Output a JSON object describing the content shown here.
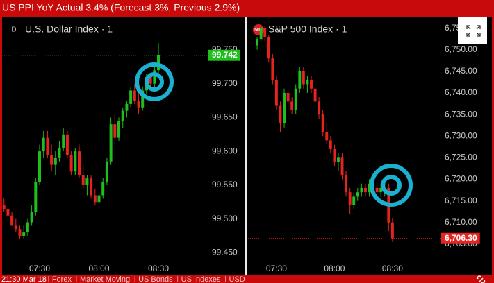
{
  "header": {
    "title": "US PPI YoY Actual 3.4% (Forecast 3%, Previous 2.9%)"
  },
  "footer": {
    "timestamp": "21:30 Mar 18",
    "tags": [
      "Forex",
      "Market Moving",
      "US Bonds",
      "US Indexes",
      "USD"
    ]
  },
  "chart_data": [
    {
      "type": "candlestick",
      "title": "U.S. Dollar Index · 1",
      "icon_label": "D",
      "up_color": "#1fbf1f",
      "down_color": "#e8231f",
      "x": [
        432,
        434,
        436,
        438,
        440,
        442,
        444,
        446,
        448,
        450,
        452,
        454,
        456,
        458,
        460,
        462,
        464,
        466,
        468,
        470,
        472,
        474,
        476,
        478,
        480,
        482,
        484,
        486,
        488,
        490,
        492,
        494,
        496,
        498,
        500,
        502,
        504,
        506,
        508,
        510
      ],
      "open": [
        99.52,
        99.515,
        99.505,
        99.49,
        99.485,
        99.475,
        99.48,
        99.495,
        99.51,
        99.555,
        99.6,
        99.62,
        99.595,
        99.58,
        99.59,
        99.605,
        99.625,
        99.595,
        99.57,
        99.6,
        99.565,
        99.55,
        99.56,
        99.535,
        99.525,
        99.535,
        99.555,
        99.585,
        99.64,
        99.62,
        99.645,
        99.66,
        99.67,
        99.69,
        99.675,
        99.665,
        99.69,
        99.71,
        99.7,
        99.72
      ],
      "high": [
        99.53,
        99.52,
        99.51,
        99.5,
        99.49,
        99.49,
        99.5,
        99.52,
        99.56,
        99.61,
        99.63,
        99.63,
        99.61,
        99.6,
        99.615,
        99.635,
        99.63,
        99.6,
        99.605,
        99.61,
        99.58,
        99.565,
        99.565,
        99.545,
        99.54,
        99.56,
        99.59,
        99.65,
        99.655,
        99.65,
        99.665,
        99.675,
        99.695,
        99.7,
        99.685,
        99.695,
        99.715,
        99.715,
        99.725,
        99.76
      ],
      "low": [
        99.51,
        99.5,
        99.49,
        99.48,
        99.47,
        99.47,
        99.475,
        99.49,
        99.505,
        99.55,
        99.59,
        99.59,
        99.57,
        99.565,
        99.585,
        99.6,
        99.59,
        99.565,
        99.565,
        99.56,
        99.545,
        99.535,
        99.53,
        99.52,
        99.52,
        99.53,
        99.55,
        99.58,
        99.61,
        99.615,
        99.635,
        99.65,
        99.665,
        99.67,
        99.655,
        99.66,
        99.685,
        99.69,
        99.695,
        99.715
      ],
      "close": [
        99.515,
        99.505,
        99.49,
        99.485,
        99.475,
        99.48,
        99.495,
        99.51,
        99.555,
        99.6,
        99.62,
        99.595,
        99.58,
        99.59,
        99.605,
        99.625,
        99.595,
        99.57,
        99.6,
        99.565,
        99.55,
        99.56,
        99.535,
        99.525,
        99.535,
        99.555,
        99.585,
        99.64,
        99.62,
        99.645,
        99.66,
        99.67,
        99.69,
        99.675,
        99.665,
        99.69,
        99.71,
        99.7,
        99.72,
        99.742
      ],
      "xlim": [
        431.05,
        533.5
      ],
      "xticks": [
        {
          "value": 450,
          "label": "07:30"
        },
        {
          "value": 480,
          "label": "08:00"
        },
        {
          "value": 510,
          "label": "08:30"
        }
      ],
      "ylim": [
        99.436,
        99.793
      ],
      "yticks": [
        {
          "value": 99.45,
          "label": "99.450"
        },
        {
          "value": 99.5,
          "label": "99.500"
        },
        {
          "value": 99.55,
          "label": "99.550"
        },
        {
          "value": 99.6,
          "label": "99.600"
        },
        {
          "value": 99.65,
          "label": "99.650"
        },
        {
          "value": 99.7,
          "label": "99.700"
        },
        {
          "value": 99.75,
          "label": "99.750"
        }
      ],
      "last_price": 99.742,
      "last_price_color": "#1fbf1f"
    },
    {
      "type": "candlestick",
      "title": "S&P 500 Index · 1",
      "icon_label": "500",
      "up_color": "#1fbf1f",
      "down_color": "#e8231f",
      "x": [
        440,
        442,
        444,
        446,
        448,
        450,
        452,
        454,
        456,
        458,
        460,
        462,
        464,
        466,
        468,
        470,
        472,
        474,
        476,
        478,
        480,
        482,
        484,
        486,
        488,
        490,
        492,
        494,
        496,
        498,
        500,
        502,
        504,
        506,
        508,
        510
      ],
      "open": [
        6751,
        6752.5,
        6755,
        6753,
        6748,
        6743,
        6737,
        6733,
        6740,
        6738,
        6736,
        6741,
        6745,
        6742,
        6743,
        6741,
        6738,
        6735,
        6731,
        6729,
        6727,
        6724,
        6725,
        6721,
        6717,
        6714,
        6716,
        6717,
        6718,
        6717,
        6719,
        6718,
        6717,
        6718,
        6718,
        6710
      ],
      "high": [
        6753,
        6756,
        6755.5,
        6753.5,
        6749,
        6744,
        6738,
        6741,
        6741,
        6739,
        6742,
        6746,
        6746,
        6744,
        6744,
        6742,
        6739,
        6736,
        6733,
        6730,
        6728,
        6726,
        6726,
        6722,
        6718,
        6717,
        6718,
        6719,
        6719,
        6720,
        6720,
        6719,
        6719,
        6719,
        6719,
        6711
      ],
      "low": [
        6750,
        6752,
        6752,
        6747,
        6742,
        6736,
        6731,
        6732,
        6736,
        6735,
        6735,
        6740,
        6741,
        6740,
        6740,
        6737,
        6734,
        6730,
        6728,
        6726,
        6723,
        6722,
        6720,
        6716,
        6712,
        6713,
        6715,
        6716,
        6716,
        6716,
        6717,
        6716,
        6716,
        6716,
        6708,
        6705.5
      ],
      "close": [
        6752.5,
        6755,
        6753,
        6748,
        6743,
        6737,
        6733,
        6740,
        6738,
        6736,
        6741,
        6745,
        6742,
        6743,
        6741,
        6738,
        6735,
        6731,
        6729,
        6727,
        6724,
        6725,
        6721,
        6717,
        6714,
        6716,
        6717,
        6718,
        6717,
        6719,
        6718,
        6717,
        6718,
        6718,
        6710,
        6706.3
      ],
      "xlim": [
        435.3,
        533.4
      ],
      "xticks": [
        {
          "value": 450,
          "label": "07:30"
        },
        {
          "value": 480,
          "label": "08:00"
        },
        {
          "value": 510,
          "label": "08:30"
        }
      ],
      "ylim": [
        6700.8,
        6756.7
      ],
      "yticks": [
        {
          "value": 6705,
          "label": "6,705.00"
        },
        {
          "value": 6710,
          "label": "6,710.00"
        },
        {
          "value": 6715,
          "label": "6,715.00"
        },
        {
          "value": 6720,
          "label": "6,720.00"
        },
        {
          "value": 6725,
          "label": "6,725.00"
        },
        {
          "value": 6730,
          "label": "6,730.00"
        },
        {
          "value": 6735,
          "label": "6,735.00"
        },
        {
          "value": 6740,
          "label": "6,740.00"
        },
        {
          "value": 6745,
          "label": "6,745.00"
        },
        {
          "value": 6750,
          "label": "6,750.00"
        },
        {
          "value": 6755,
          "label": "6,755.00"
        }
      ],
      "last_price": {
        "value": 6706.3,
        "label": "6,706.30"
      },
      "last_price_color": "#e8231f"
    }
  ]
}
